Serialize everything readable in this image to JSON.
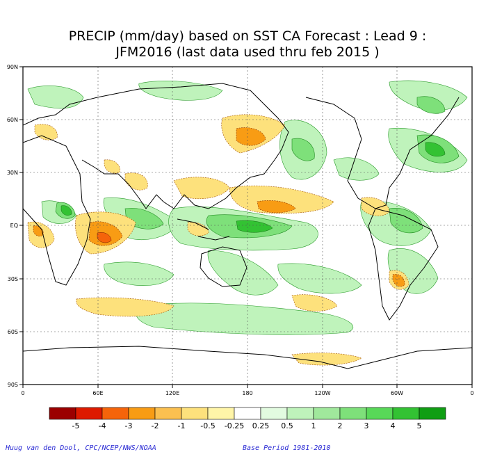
{
  "title_line1": "PRECIP (mm/day) based on SST CA Forecast : Lead 9 :",
  "title_line2": "JFM2016 (last data used thru feb 2015 )",
  "lat_labels": [
    "90N",
    "60N",
    "30N",
    "EQ",
    "30S",
    "60S",
    "90S"
  ],
  "lon_labels": [
    "0",
    "60E",
    "120E",
    "180",
    "120W",
    "60W",
    "0"
  ],
  "legend": {
    "colors": [
      "#9b0000",
      "#dd1a00",
      "#f5640a",
      "#f89c14",
      "#fbc050",
      "#fde17c",
      "#fff5a8",
      "#ffffff",
      "#e2fbe0",
      "#bff3bb",
      "#a0e89c",
      "#7ee07a",
      "#58d858",
      "#33c233",
      "#0f9e13"
    ],
    "labels": [
      "-5",
      "-4",
      "-3",
      "-2",
      "-1",
      "-0.5",
      "-0.25",
      "0.25",
      "0.5",
      "1",
      "2",
      "3",
      "4",
      "5"
    ]
  },
  "credit_left": "Huug van den Dool, CPC/NCEP/NWS/NOAA",
  "credit_right": "Base Period 1981-2010"
}
